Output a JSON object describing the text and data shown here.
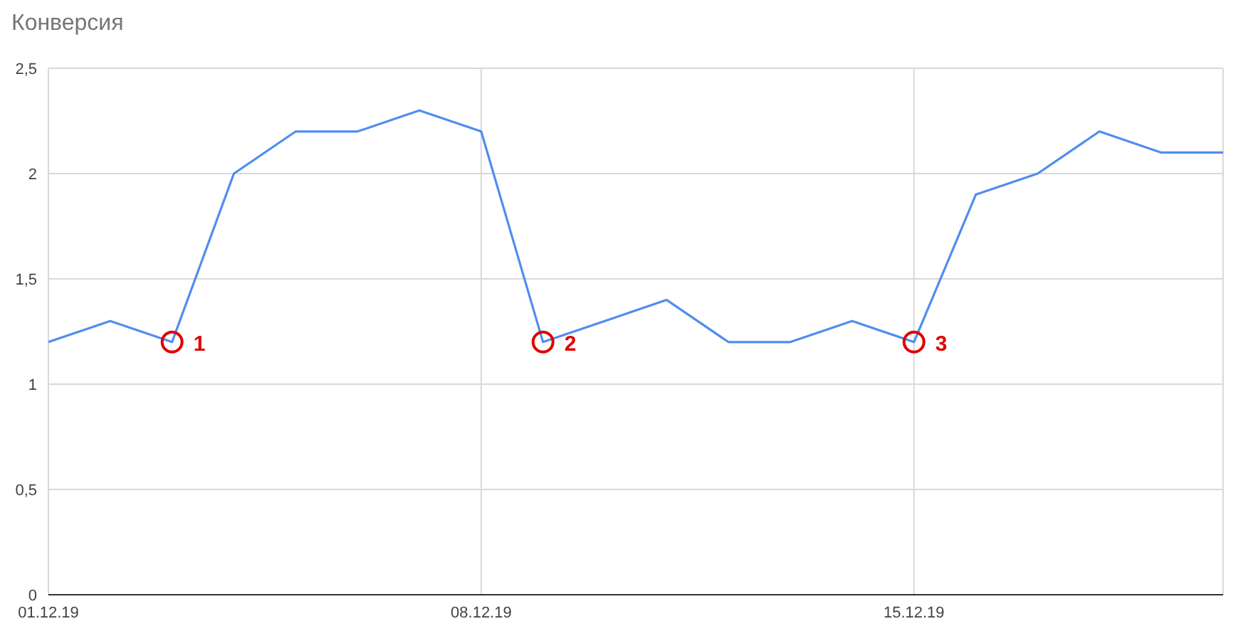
{
  "chart_data": {
    "type": "line",
    "title": "Конверсия",
    "x": [
      "--12-01",
      "--12-02",
      "--12-03",
      "--12-04",
      "--12-05",
      "--12-06",
      "--12-07",
      "--12-08",
      "--12-09",
      "--12-10",
      "--12-11",
      "--12-12",
      "--12-13",
      "--12-14",
      "--12-15",
      "--12-16",
      "--12-17",
      "--12-18",
      "--12-19",
      "--12-20"
    ],
    "series": [
      {
        "color": "#4f8df0",
        "values": [
          1.2,
          1.3,
          1.2,
          2.0,
          2.2,
          2.2,
          2.3,
          2.2,
          1.2,
          1.3,
          1.4,
          1.2,
          1.2,
          1.3,
          1.2,
          1.9,
          2.0,
          2.2,
          2.1,
          2.1
        ]
      }
    ],
    "xlim": [
      "--12-01",
      "--12-20"
    ],
    "xticks": [
      {
        "value": "--12-01",
        "label": "01.12.19"
      },
      {
        "value": "--12-08",
        "label": "08.12.19"
      },
      {
        "value": "--12-15",
        "label": "15.12.19"
      }
    ],
    "ylim": [
      0,
      2.5
    ],
    "yticks": [
      {
        "value": 0,
        "label": "0"
      },
      {
        "value": 0.5,
        "label": "0,5"
      },
      {
        "value": 1,
        "label": "1"
      },
      {
        "value": 1.5,
        "label": "1,5"
      },
      {
        "value": 2,
        "label": "2"
      },
      {
        "value": 2.5,
        "label": "2,5"
      }
    ],
    "grid": true,
    "legend": false,
    "marker": "none",
    "line_style": "solid",
    "annotations": [
      {
        "text": "1",
        "x": "--12-03",
        "y": 1.2
      },
      {
        "text": "2",
        "x": "--12-09",
        "y": 1.2
      },
      {
        "text": "3",
        "x": "--12-15",
        "y": 1.2
      }
    ]
  }
}
